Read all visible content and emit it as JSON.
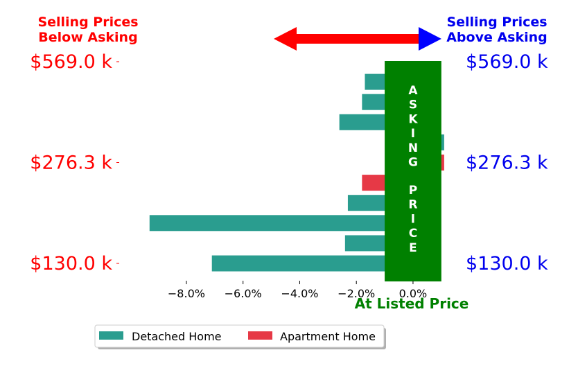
{
  "headings": {
    "below_line1": "Selling Prices",
    "below_line2": "Below Asking",
    "above_line1": "Selling Prices",
    "above_line2": "Above Asking",
    "at_listed": "At Listed Price",
    "band_word1": [
      "A",
      "S",
      "K",
      "I",
      "N",
      "G"
    ],
    "band_word2": [
      "P",
      "R",
      "I",
      "C",
      "E"
    ]
  },
  "colors": {
    "below": "#ff0000",
    "above": "#0000ee",
    "band": "#008000",
    "detached": "#2a9d8f",
    "apartment": "#e63946",
    "arrow_left": "#ff0000",
    "arrow_right": "#0000ff"
  },
  "chart_data": {
    "type": "bar",
    "orientation": "horizontal",
    "x_unit": "percent difference from asking price",
    "xlim": [
      -10.2,
      1.2
    ],
    "x_ticks": [
      -8.0,
      -6.0,
      -4.0,
      -2.0,
      0.0
    ],
    "x_tick_labels": [
      "−8.0%",
      "−6.0%",
      "−4.0%",
      "−2.0%",
      "0.0%"
    ],
    "price_labels": [
      "$569.0 k",
      "$276.3 k",
      "$130.0 k"
    ],
    "price_label_rows": [
      0,
      5,
      10
    ],
    "row_count": 11,
    "series": [
      {
        "name": "Detached Home",
        "color": "#2a9d8f",
        "bars": [
          {
            "row": 1,
            "value": -1.7
          },
          {
            "row": 2,
            "value": -1.8
          },
          {
            "row": 3,
            "value": -2.6
          },
          {
            "row": 4,
            "value": 1.1
          },
          {
            "row": 7,
            "value": -2.3
          },
          {
            "row": 8,
            "value": -9.3
          },
          {
            "row": 9,
            "value": -2.4
          },
          {
            "row": 10,
            "value": -7.1
          }
        ]
      },
      {
        "name": "Apartment Home",
        "color": "#e63946",
        "bars": [
          {
            "row": 5,
            "value": 1.1
          },
          {
            "row": 6,
            "value": -1.8
          }
        ]
      }
    ],
    "band": {
      "from": -1.0,
      "to": 1.0
    },
    "legend_placement": "bottom-center",
    "grid": false
  }
}
